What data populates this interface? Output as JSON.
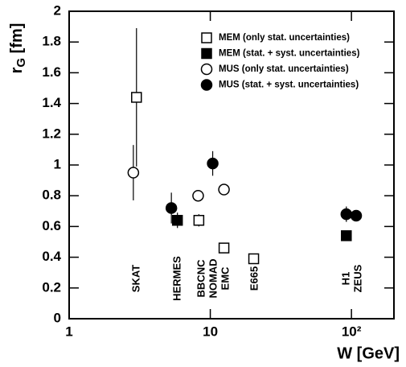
{
  "chart_data": {
    "type": "scatter",
    "xlabel": "W [GeV]",
    "ylabel": "r",
    "ylabel_subscript": "G",
    "ylabel_suffix": " [fm]",
    "xscale": "log",
    "xlim": [
      1,
      200
    ],
    "ylim": [
      0,
      2
    ],
    "xticks": [
      1,
      10,
      {
        "value": 100,
        "label": "10²"
      }
    ],
    "yticks": [
      0,
      0.2,
      0.4,
      0.6,
      0.8,
      1,
      1.2,
      1.4,
      1.6,
      1.8,
      2
    ],
    "legend": "upper right",
    "annotations": [
      "SKAT",
      "HERMES",
      "BBCNC",
      "NOMAD",
      "EMC",
      "E665",
      "H1",
      "ZEUS"
    ],
    "series": [
      {
        "name": "MEM (only stat. uncertainties)",
        "marker": "square",
        "filled": false,
        "color": "#000000",
        "x": [
          3.0,
          8.3,
          12.5,
          20.3
        ],
        "values": [
          1.44,
          0.64,
          0.46,
          0.39
        ],
        "errors": [
          0.45,
          0.04,
          0.0,
          0.0
        ]
      },
      {
        "name": "MEM (stat. + syst. uncertainties)",
        "marker": "square",
        "filled": true,
        "color": "#000000",
        "x": [
          5.85,
          92
        ],
        "values": [
          0.64,
          0.54
        ],
        "errors": [
          0.05,
          0.03
        ]
      },
      {
        "name": "MUS (only stat. uncertainties)",
        "marker": "circle",
        "filled": false,
        "color": "#000000",
        "x": [
          2.85,
          8.2,
          12.5
        ],
        "values": [
          0.95,
          0.8,
          0.84
        ],
        "errors": [
          0.18,
          0.02,
          0.0
        ]
      },
      {
        "name": "MUS (stat. + syst. uncertainties)",
        "marker": "circle",
        "filled": true,
        "color": "#000000",
        "x": [
          5.3,
          10.4,
          92,
          108
        ],
        "values": [
          0.72,
          1.01,
          0.68,
          0.67
        ],
        "errors": [
          0.1,
          0.08,
          0.05,
          0.03
        ]
      }
    ]
  }
}
